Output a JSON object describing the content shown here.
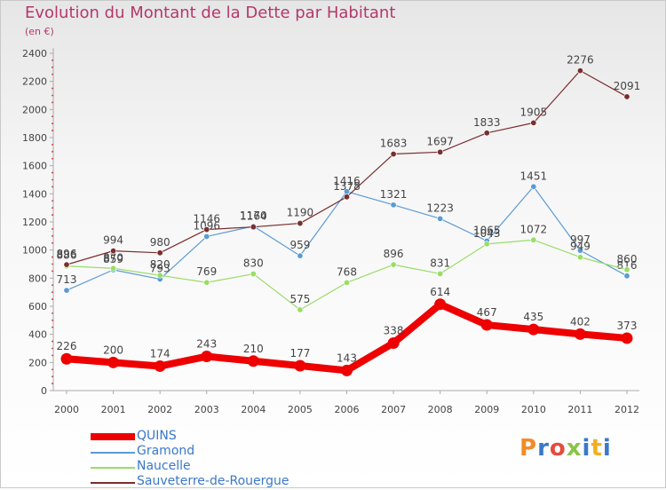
{
  "title": "Evolution du Montant de la Dette par Habitant",
  "subtitle": "(en €)",
  "logo_text": "Proxiti",
  "logo_colors": [
    "#f28c28",
    "#3a78c8",
    "#e54b3c",
    "#8bc34a",
    "#3a78c8",
    "#f2b01e",
    "#3a78c8"
  ],
  "chart_data": {
    "type": "line",
    "x": [
      "2000",
      "2001",
      "2002",
      "2003",
      "2004",
      "2005",
      "2006",
      "2007",
      "2008",
      "2009",
      "2010",
      "2011",
      "2012"
    ],
    "ylim": [
      0,
      2400
    ],
    "yticks": [
      "0",
      "200",
      "400",
      "600",
      "800",
      "1000",
      "1200",
      "1400",
      "1600",
      "1800",
      "2000",
      "2200",
      "2400"
    ],
    "grid": false,
    "legend_position": "bottom-left",
    "series": [
      {
        "name": "QUINS",
        "color": "#ee0000",
        "values": [
          226,
          200,
          174,
          243,
          210,
          177,
          143,
          338,
          614,
          467,
          435,
          402,
          373
        ],
        "labels": [
          "226",
          "200",
          "174",
          "243",
          "210",
          "177",
          "143",
          "338",
          "614",
          "467",
          "435",
          "402",
          "373"
        ]
      },
      {
        "name": "Gramond",
        "color": "#5b9bd5",
        "values": [
          713,
          859,
          793,
          1096,
          1170,
          959,
          1416,
          1321,
          1223,
          1065,
          1451,
          997,
          816
        ],
        "labels": [
          "713",
          "859",
          "793",
          "1096",
          "1170",
          "959",
          "1416",
          "1321",
          "1223",
          "1065",
          "1451",
          "997",
          "816"
        ]
      },
      {
        "name": "Naucelle",
        "color": "#99dd66",
        "values": [
          886,
          870,
          820,
          769,
          830,
          575,
          768,
          896,
          831,
          1043,
          1072,
          949,
          860
        ],
        "labels": [
          "886",
          "870",
          "820",
          "769",
          "830",
          "575",
          "768",
          "896",
          "831",
          "1043",
          "1072",
          "949",
          "860"
        ]
      },
      {
        "name": "Sauveterre-de-Rouergue",
        "color": "#7a2e2e",
        "values": [
          896,
          994,
          980,
          1146,
          1164,
          1190,
          1378,
          1683,
          1697,
          1833,
          1905,
          2276,
          2091
        ],
        "labels": [
          "896",
          "994",
          "980",
          "1146",
          "1164",
          "1190",
          "1378",
          "1683",
          "1697",
          "1833",
          "1905",
          "2276",
          "2091"
        ]
      }
    ]
  }
}
